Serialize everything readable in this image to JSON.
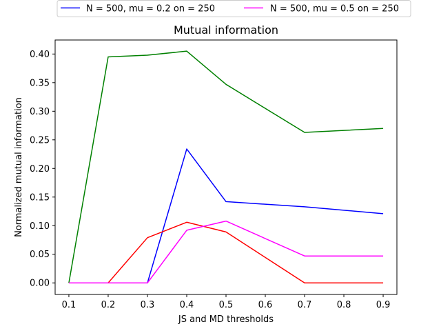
{
  "chart_data": {
    "type": "line",
    "title": "Mutual information",
    "xlabel": "JS and MD thresholds",
    "ylabel": "Normalized mutual information",
    "x": [
      0.1,
      0.2,
      0.3,
      0.4,
      0.5,
      0.7,
      0.9
    ],
    "xticks": [
      "0.1",
      "0.2",
      "0.3",
      "0.4",
      "0.5",
      "0.6",
      "0.7",
      "0.8",
      "0.9"
    ],
    "yticks": [
      "0.00",
      "0.05",
      "0.10",
      "0.15",
      "0.20",
      "0.25",
      "0.30",
      "0.35",
      "0.40"
    ],
    "xlim": [
      0.065,
      0.935
    ],
    "ylim": [
      -0.0202,
      0.4245
    ],
    "grid": false,
    "legend_position": "top, above plot",
    "series": [
      {
        "name": "N = 500, mu = 0.2 on = 250",
        "color": "#0000ff",
        "legend": true,
        "values": [
          0.0,
          0.0,
          0.0,
          0.234,
          0.142,
          0.133,
          0.121
        ]
      },
      {
        "name": "",
        "color": "#008000",
        "legend": false,
        "values": [
          0.0,
          0.395,
          0.398,
          0.405,
          0.347,
          0.263,
          0.27
        ]
      },
      {
        "name": "",
        "color": "#ff0000",
        "legend": false,
        "values": [
          0.0,
          0.0,
          0.079,
          0.106,
          0.089,
          0.0,
          0.0
        ]
      },
      {
        "name": "N = 500, mu = 0.5 on = 250",
        "color": "#ff00ff",
        "legend": true,
        "values": [
          0.0,
          0.0,
          0.0,
          0.092,
          0.108,
          0.047,
          0.047
        ]
      }
    ]
  }
}
